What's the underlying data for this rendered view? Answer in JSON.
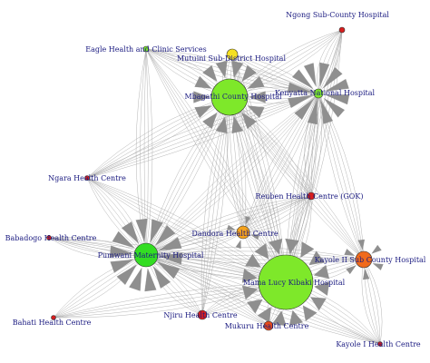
{
  "colors": {
    "green": "#7ee82a",
    "bright_green": "#33dd22",
    "yellow": "#f5e020",
    "orange": "#f4a21c",
    "dark_orange": "#f06a1c",
    "red": "#d81e1e",
    "red_orange": "#e84a1a",
    "edge": "#a8a8a8",
    "label": "#1a1a80"
  },
  "nodes": [
    {
      "id": "ngong",
      "label": "Ngong Sub-County Hospital",
      "color": "red"
    },
    {
      "id": "eagle",
      "label": "Eagle Health and Clinic Services",
      "color": "green"
    },
    {
      "id": "mutuini",
      "label": "Mutuini Sub-District Hospital",
      "color": "yellow"
    },
    {
      "id": "mbagathi",
      "label": "Mbagathi County Hospital",
      "color": "green"
    },
    {
      "id": "kenyatta",
      "label": "Kenyatta National Hospital",
      "color": "green"
    },
    {
      "id": "ngara",
      "label": "Ngara Health Centre",
      "color": "red"
    },
    {
      "id": "reuben",
      "label": "Reuben Health Centre (GOK)",
      "color": "red"
    },
    {
      "id": "babadogo",
      "label": "Babadogo Health Centre",
      "color": "red"
    },
    {
      "id": "dandora",
      "label": "Dandora Health Centre",
      "color": "orange"
    },
    {
      "id": "pumwani",
      "label": "Pumwani Maternity Hospital",
      "color": "bright_green"
    },
    {
      "id": "kayole2",
      "label": "Kayole II Sub County Hospital",
      "color": "dark_orange"
    },
    {
      "id": "mamalucy",
      "label": "Mama Lucy Kibaki Hospital",
      "color": "green"
    },
    {
      "id": "bahati",
      "label": "Bahati Health Centre",
      "color": "red"
    },
    {
      "id": "njiru",
      "label": "Njiru Health Centre",
      "color": "red"
    },
    {
      "id": "mukuru",
      "label": "Mukuru Health Centre",
      "color": "red_orange"
    },
    {
      "id": "kayole1",
      "label": "Kayole I Health Centre",
      "color": "red"
    }
  ]
}
